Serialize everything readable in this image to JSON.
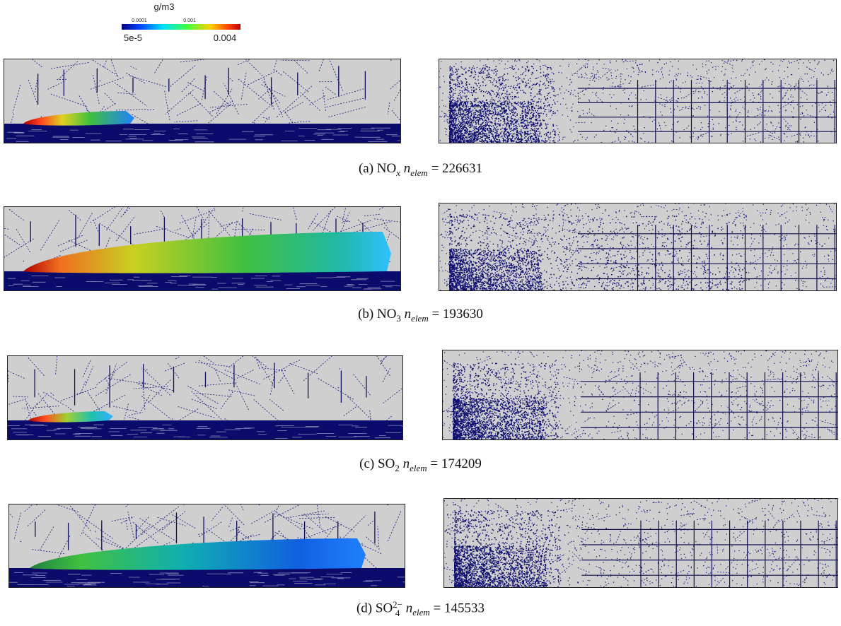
{
  "colorbar": {
    "title": "g/m3",
    "min_label": "5e-5",
    "max_label": "0.004",
    "tick_labels": [
      "0.0001",
      "0.001"
    ]
  },
  "panels": [
    {
      "label": "(a)",
      "species": "NO",
      "species_sub": "x",
      "n": "n",
      "n_sub": "elem",
      "equals": "= 226631"
    },
    {
      "label": "(b)",
      "species": "NO",
      "species_sub": "3",
      "n": "n",
      "n_sub": "elem",
      "equals": "= 193630"
    },
    {
      "label": "(c)",
      "species": "SO",
      "species_sub": "2",
      "n": "n",
      "n_sub": "elem",
      "equals": "= 174209"
    },
    {
      "label": "(d)",
      "species": "SO",
      "species_sub": "4",
      "species_sup": "2−",
      "n": "n",
      "n_sub": "elem",
      "equals": "= 145533"
    }
  ]
}
